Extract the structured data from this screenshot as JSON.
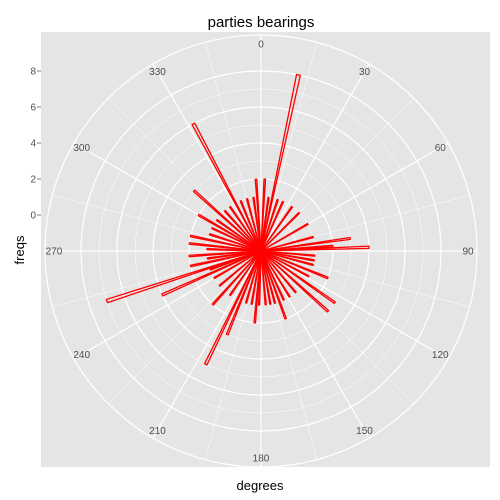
{
  "chart_data": {
    "type": "polar-bar",
    "title": "parties bearings",
    "xlabel": "degrees",
    "ylabel": "freqs",
    "angle_ticks": [
      0,
      30,
      60,
      90,
      120,
      150,
      180,
      210,
      240,
      270,
      300,
      330
    ],
    "radial_ticks": [
      0,
      2,
      4,
      6,
      8
    ],
    "rlim": [
      -2,
      10
    ],
    "grid": true,
    "colors": {
      "bar": "#ff0000",
      "panel": "#e5e5e5",
      "grid": "#ffffff"
    },
    "bars": [
      {
        "angle": 3,
        "value": 2
      },
      {
        "angle": 8,
        "value": 1
      },
      {
        "angle": 12,
        "value": 8
      },
      {
        "angle": 18,
        "value": 1
      },
      {
        "angle": 24,
        "value": 1
      },
      {
        "angle": 35,
        "value": 1
      },
      {
        "angle": 45,
        "value": 1
      },
      {
        "angle": 60,
        "value": 1
      },
      {
        "angle": 75,
        "value": 1
      },
      {
        "angle": 82,
        "value": 3
      },
      {
        "angle": 86,
        "value": 2
      },
      {
        "angle": 88,
        "value": 4
      },
      {
        "angle": 95,
        "value": 1
      },
      {
        "angle": 100,
        "value": 1
      },
      {
        "angle": 105,
        "value": 1
      },
      {
        "angle": 112,
        "value": 2
      },
      {
        "angle": 118,
        "value": 1
      },
      {
        "angle": 125,
        "value": 3
      },
      {
        "angle": 132,
        "value": 3
      },
      {
        "angle": 140,
        "value": 1
      },
      {
        "angle": 148,
        "value": 1
      },
      {
        "angle": 155,
        "value": 1
      },
      {
        "angle": 160,
        "value": 2
      },
      {
        "angle": 165,
        "value": 1
      },
      {
        "angle": 170,
        "value": 1
      },
      {
        "angle": 175,
        "value": 1
      },
      {
        "angle": 182,
        "value": 1
      },
      {
        "angle": 185,
        "value": 2
      },
      {
        "angle": 190,
        "value": 1
      },
      {
        "angle": 196,
        "value": 1
      },
      {
        "angle": 202,
        "value": 3
      },
      {
        "angle": 206,
        "value": 5
      },
      {
        "angle": 215,
        "value": 1
      },
      {
        "angle": 222,
        "value": 2
      },
      {
        "angle": 230,
        "value": 1
      },
      {
        "angle": 240,
        "value": 1
      },
      {
        "angle": 246,
        "value": 4
      },
      {
        "angle": 250,
        "value": 1
      },
      {
        "angle": 252,
        "value": 7
      },
      {
        "angle": 258,
        "value": 2
      },
      {
        "angle": 262,
        "value": 1
      },
      {
        "angle": 266,
        "value": 2
      },
      {
        "angle": 272,
        "value": 1
      },
      {
        "angle": 276,
        "value": 2
      },
      {
        "angle": 282,
        "value": 2
      },
      {
        "angle": 288,
        "value": 1
      },
      {
        "angle": 295,
        "value": 1
      },
      {
        "angle": 300,
        "value": 2
      },
      {
        "angle": 305,
        "value": 1
      },
      {
        "angle": 312,
        "value": 3
      },
      {
        "angle": 318,
        "value": 1
      },
      {
        "angle": 325,
        "value": 1
      },
      {
        "angle": 332,
        "value": 6
      },
      {
        "angle": 338,
        "value": 1
      },
      {
        "angle": 345,
        "value": 1
      },
      {
        "angle": 352,
        "value": 1
      },
      {
        "angle": 356,
        "value": 2
      }
    ]
  }
}
